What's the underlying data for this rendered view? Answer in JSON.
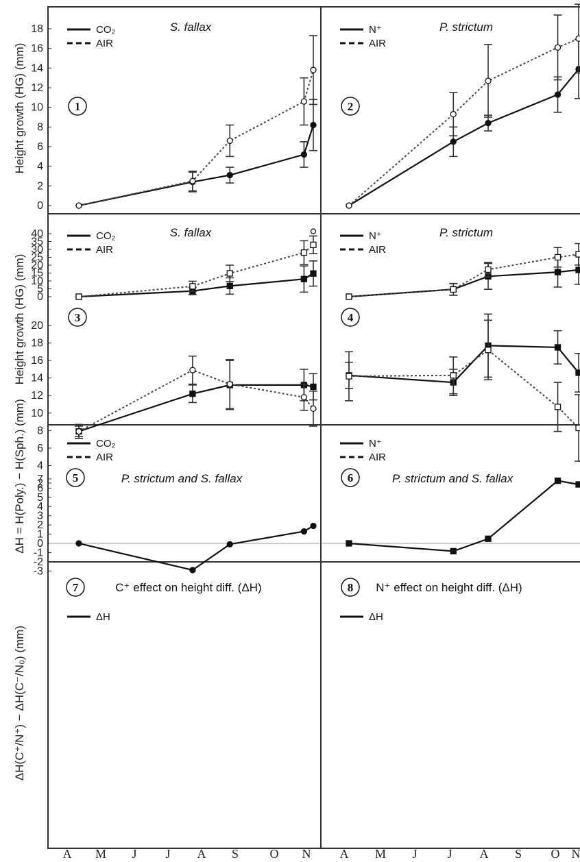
{
  "months": [
    "A",
    "M",
    "J",
    "J",
    "A",
    "S",
    "O",
    "N"
  ],
  "ylabels": {
    "row1": "Height growth (HG) (mm)",
    "row2": "Height growth (HG) (mm)",
    "row3": "ΔH = H(Poly.) − H(Sph.) (mm)",
    "row4": "ΔH(C⁺/N⁺) − ΔH(C⁻/N₀) (mm)"
  },
  "chart_data": [
    {
      "id": 1,
      "panel_label": "1",
      "type": "line",
      "title": "S. fallax",
      "ylim": [
        -1,
        20
      ],
      "yticks": [
        0,
        2,
        4,
        6,
        8,
        10,
        12,
        14,
        16,
        18
      ],
      "legend": [
        "CO₂",
        "AIR"
      ],
      "series": [
        {
          "name": "CO₂",
          "style": "solid",
          "marker": "filled-circle",
          "x": [
            0,
            2.93,
            3.89,
            5.8,
            6.04
          ],
          "y": [
            0,
            2.4,
            3.1,
            5.2,
            8.2
          ],
          "err": [
            0,
            1.0,
            0.8,
            1.3,
            2.6
          ]
        },
        {
          "name": "AIR",
          "style": "dashed",
          "marker": "open-circle",
          "x": [
            0,
            2.93,
            3.89,
            5.8,
            6.04
          ],
          "y": [
            0,
            2.5,
            6.6,
            10.6,
            13.8
          ],
          "err": [
            0,
            1.0,
            1.6,
            2.4,
            3.5
          ]
        }
      ]
    },
    {
      "id": 2,
      "panel_label": "2",
      "type": "line",
      "title": "P. strictum",
      "ylim": [
        -1,
        20
      ],
      "yticks": [
        0,
        2,
        4,
        6,
        8,
        10,
        12,
        14,
        16,
        18
      ],
      "legend": [
        "N⁺",
        "AIR"
      ],
      "series": [
        {
          "name": "N⁺",
          "style": "solid",
          "marker": "filled-circle",
          "x": [
            0,
            3.0,
            4.0,
            6.0,
            6.6
          ],
          "y": [
            0,
            6.5,
            8.4,
            11.3,
            13.9
          ],
          "err": [
            0,
            1.5,
            0.8,
            1.8,
            3.0
          ]
        },
        {
          "name": "AIR",
          "style": "dashed",
          "marker": "open-circle",
          "x": [
            0,
            3.0,
            4.0,
            6.0,
            6.6
          ],
          "y": [
            0,
            9.3,
            12.7,
            16.1,
            17.0
          ],
          "err": [
            0,
            2.2,
            3.7,
            3.3,
            3.5
          ]
        }
      ]
    },
    {
      "id": 3,
      "panel_label": "3",
      "type": "line",
      "title": "S. fallax",
      "ylim": [
        -2,
        43
      ],
      "yticks": [
        0,
        5,
        10,
        15,
        20,
        25,
        30,
        35,
        40
      ],
      "legend": [
        "CO₂",
        "AIR"
      ],
      "outlier": {
        "x": 6.04,
        "y": 41.5
      },
      "series": [
        {
          "name": "CO₂",
          "style": "solid",
          "marker": "filled-square",
          "x": [
            0,
            2.93,
            3.89,
            5.8,
            6.04
          ],
          "y": [
            0,
            3.6,
            6.8,
            11.2,
            14.7
          ],
          "err": [
            0,
            2.3,
            5.2,
            8.3,
            8.0
          ]
        },
        {
          "name": "AIR",
          "style": "dashed",
          "marker": "open-square",
          "x": [
            0,
            2.93,
            3.89,
            5.8,
            6.04
          ],
          "y": [
            0,
            6.6,
            14.8,
            28.0,
            32.9
          ],
          "err": [
            0,
            3.2,
            5.2,
            7.5,
            5.6
          ]
        }
      ]
    },
    {
      "id": 4,
      "panel_label": "4",
      "type": "line",
      "title": "P. strictum",
      "ylim": [
        -2,
        43
      ],
      "yticks": [
        0,
        5,
        10,
        15,
        20,
        25,
        30,
        35,
        40
      ],
      "legend": [
        "N⁺",
        "AIR"
      ],
      "series": [
        {
          "name": "N⁺",
          "style": "solid",
          "marker": "filled-square",
          "x": [
            0,
            3.0,
            4.0,
            6.0,
            6.6
          ],
          "y": [
            0,
            4.7,
            12.9,
            15.6,
            17.0
          ],
          "err": [
            0,
            3.7,
            8.2,
            9.5,
            9.1
          ]
        },
        {
          "name": "AIR",
          "style": "dashed",
          "marker": "open-square",
          "x": [
            0,
            3.0,
            4.0,
            6.0,
            6.6
          ],
          "y": [
            0,
            4.6,
            17.2,
            25.0,
            26.9
          ],
          "err": [
            0,
            3.7,
            4.6,
            6.2,
            6.8
          ]
        }
      ]
    },
    {
      "id": 5,
      "panel_label": "5",
      "type": "line",
      "title": "P. strictum and S. fallax",
      "ylim": [
        0.5,
        22
      ],
      "yticks": [
        2,
        4,
        6,
        8,
        10,
        12,
        14,
        16,
        18,
        20
      ],
      "legend": [
        "CO₂",
        "AIR"
      ],
      "series": [
        {
          "name": "CO₂",
          "style": "solid",
          "marker": "filled-square",
          "x": [
            0,
            2.93,
            3.89,
            5.8,
            6.04
          ],
          "y": [
            7.9,
            12.2,
            13.2,
            13.2,
            13.0
          ],
          "err": [
            0.8,
            1.0,
            2.8,
            1.8,
            1.5
          ]
        },
        {
          "name": "AIR",
          "style": "dashed",
          "marker": "open-circle",
          "x": [
            0,
            2.93,
            3.89,
            5.8,
            6.04
          ],
          "y": [
            7.9,
            14.9,
            13.3,
            11.8,
            10.5
          ],
          "err": [
            0.6,
            1.6,
            2.8,
            1.5,
            2.0
          ]
        }
      ]
    },
    {
      "id": 6,
      "panel_label": "6",
      "type": "line",
      "title": "P. strictum and S. fallax",
      "ylim": [
        0.5,
        22
      ],
      "yticks": [
        2,
        4,
        6,
        8,
        10,
        12,
        14,
        16,
        18,
        20
      ],
      "legend": [
        "N⁺",
        "AIR"
      ],
      "series": [
        {
          "name": "N⁺",
          "style": "solid",
          "marker": "filled-square",
          "x": [
            0,
            3.0,
            4.0,
            6.0,
            6.6
          ],
          "y": [
            14.3,
            13.5,
            17.7,
            17.5,
            14.6
          ],
          "err": [
            1.5,
            1.5,
            3.6,
            1.9,
            2.2
          ]
        },
        {
          "name": "AIR",
          "style": "dashed",
          "marker": "open-square",
          "x": [
            0,
            3.0,
            4.0,
            6.0,
            6.6
          ],
          "y": [
            14.2,
            14.3,
            17.2,
            10.7,
            8.3
          ],
          "err": [
            2.8,
            2.1,
            3.4,
            2.8,
            3.8
          ]
        }
      ]
    },
    {
      "id": 7,
      "panel_label": "7",
      "type": "line",
      "title": "C⁺ effect on height diff. (ΔH)",
      "ylim": [
        -3.8,
        7.8
      ],
      "yticks": [
        -3,
        -2,
        -1,
        0,
        1,
        2,
        3,
        4,
        5,
        6,
        7
      ],
      "legend": [
        "ΔH"
      ],
      "series": [
        {
          "name": "ΔH",
          "style": "solid",
          "marker": "filled-circle",
          "x": [
            0,
            2.93,
            3.89,
            5.8,
            6.04
          ],
          "y": [
            0,
            -2.9,
            -0.1,
            1.3,
            1.9
          ]
        }
      ]
    },
    {
      "id": 8,
      "panel_label": "8",
      "type": "line",
      "title": "N⁺ effect on height diff. (ΔH)",
      "ylim": [
        -3.8,
        7.8
      ],
      "yticks": [
        -3,
        -2,
        -1,
        0,
        1,
        2,
        3,
        4,
        5,
        6,
        7
      ],
      "legend": [
        "ΔH"
      ],
      "series": [
        {
          "name": "ΔH",
          "style": "solid",
          "marker": "filled-square",
          "x": [
            0,
            3.0,
            4.0,
            6.0,
            6.6
          ],
          "y": [
            0,
            -0.85,
            0.5,
            6.8,
            6.4
          ]
        }
      ]
    }
  ]
}
